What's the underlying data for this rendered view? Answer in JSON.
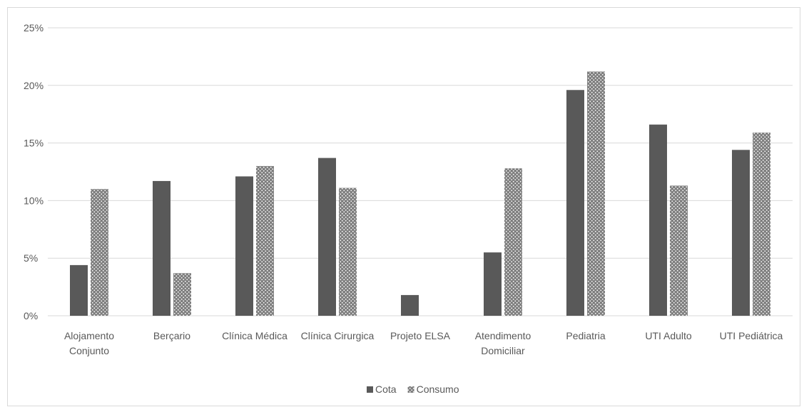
{
  "chart_data": {
    "type": "bar",
    "categories": [
      [
        "Alojamento",
        "Conjunto"
      ],
      [
        "Berçario"
      ],
      [
        "Clínica Médica"
      ],
      [
        "Clínica Cirurgica"
      ],
      [
        "Projeto ELSA"
      ],
      [
        "Atendimento",
        "Domiciliar"
      ],
      [
        "Pediatria"
      ],
      [
        "UTI Adulto"
      ],
      [
        "UTI Pediátrica"
      ]
    ],
    "series": [
      {
        "name": "Cota",
        "color": "#595959",
        "pattern": "solid",
        "values": [
          4.4,
          11.7,
          12.1,
          13.7,
          1.8,
          5.5,
          19.6,
          16.6,
          14.4
        ]
      },
      {
        "name": "Consumo",
        "color": "#7f7f7f",
        "pattern": "dotted",
        "values": [
          11.0,
          3.7,
          13.0,
          11.1,
          0,
          12.8,
          21.2,
          11.3,
          15.9
        ]
      }
    ],
    "ylim": [
      0,
      25
    ],
    "yticks": [
      0,
      5,
      10,
      15,
      20,
      25
    ],
    "ytick_format": "%",
    "grid": true,
    "legend_position": "bottom"
  }
}
